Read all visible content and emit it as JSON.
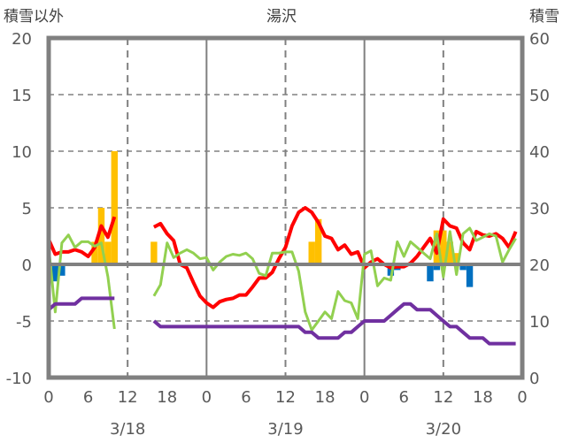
{
  "chart_data": {
    "type": "line",
    "title": "湯沢",
    "ylabel_left": "積雪以外",
    "ylabel_right": "積雪",
    "ylim_left": [
      -10,
      20
    ],
    "ylim_right": [
      0,
      60
    ],
    "yticks_left": [
      "20",
      "15",
      "10",
      "5",
      "0",
      "-5",
      "-10"
    ],
    "yticks_right": [
      "60",
      "50",
      "40",
      "30",
      "20",
      "10",
      "0"
    ],
    "xlim_hours": [
      0,
      72
    ],
    "xticks": [
      "0",
      "6",
      "12",
      "18",
      "0",
      "6",
      "12",
      "18",
      "0",
      "6",
      "12",
      "18",
      "0"
    ],
    "date_labels": [
      "3/18",
      "3/19",
      "3/20"
    ],
    "grid": "dashed at every 5 units and every 12 hours; solid at day boundaries and at 0",
    "colors": {
      "red": "#ff0000",
      "green": "#92d050",
      "purple": "#7030a0",
      "yellow": "#ffc000",
      "blue": "#0070c0",
      "axis": "#808080"
    },
    "series": [
      {
        "name": "red-line",
        "axis": "left",
        "color": "#ff0000",
        "values": [
          2.2,
          0.9,
          1.1,
          1.1,
          1.3,
          1.1,
          0.7,
          1.5,
          3.4,
          2.4,
          4.2,
          null,
          null,
          null,
          null,
          null,
          3.3,
          3.6,
          2.7,
          2.1,
          0,
          -0.3,
          -1.6,
          -2.8,
          -3.4,
          -3.8,
          -3.3,
          -3.1,
          -3.0,
          -2.7,
          -2.7,
          -2.0,
          -1.2,
          -1.2,
          -0.7,
          0.5,
          1.5,
          3.4,
          4.6,
          5.0,
          4.6,
          3.7,
          2.5,
          2.3,
          1.3,
          1.7,
          0.9,
          1.1,
          -0.3,
          0.2,
          0.5,
          0,
          -0.3,
          -0.2,
          -0.2,
          0.1,
          0.7,
          1.5,
          2.3,
          1.0,
          4.0,
          3.4,
          3.2,
          1.9,
          1.3,
          2.9,
          2.6,
          2.5,
          2.7,
          2.3,
          1.5,
          2.9
        ]
      },
      {
        "name": "green-line",
        "axis": "left",
        "color": "#92d050",
        "values": [
          1.5,
          -4.2,
          1.9,
          2.6,
          1.5,
          2.0,
          2.0,
          1.6,
          1.9,
          -1.1,
          -5.7,
          null,
          null,
          null,
          null,
          null,
          -2.8,
          -1.8,
          1.9,
          0.6,
          1.0,
          1.3,
          1.0,
          0.5,
          0.6,
          -0.5,
          0.2,
          0.7,
          0.9,
          0.8,
          1.0,
          0.5,
          -0.8,
          -1.0,
          1.0,
          1.0,
          1.1,
          1.1,
          -0.6,
          -4.2,
          -5.8,
          -5.0,
          -4.2,
          -4.8,
          -2.4,
          -3.2,
          -3.4,
          -4.8,
          0.9,
          1.2,
          -1.9,
          -1.2,
          -1.4,
          2.0,
          0.7,
          2.0,
          1.5,
          1.0,
          0.5,
          2.7,
          -1.1,
          2.9,
          -0.9,
          2.7,
          3.2,
          2.1,
          2.4,
          2.7,
          2.5,
          0.2,
          1.3,
          2.3
        ]
      },
      {
        "name": "purple-snow-depth",
        "axis": "right",
        "color": "#7030a0",
        "values": [
          12,
          13,
          13,
          13,
          13,
          14,
          14,
          14,
          14,
          14,
          14,
          null,
          null,
          null,
          null,
          null,
          10,
          9,
          9,
          9,
          9,
          9,
          9,
          9,
          9,
          9,
          9,
          9,
          9,
          9,
          9,
          9,
          9,
          9,
          9,
          9,
          9,
          9,
          9,
          8,
          8,
          7,
          7,
          7,
          7,
          8,
          8,
          9,
          10,
          10,
          10,
          10,
          11,
          12,
          13,
          13,
          12,
          12,
          12,
          11,
          10,
          9,
          9,
          8,
          7,
          7,
          7,
          6,
          6,
          6,
          6,
          6
        ]
      },
      {
        "name": "yellow-bars",
        "type": "bar",
        "axis": "left",
        "color": "#ffc000",
        "points": [
          [
            7,
            2
          ],
          [
            8,
            5
          ],
          [
            9,
            2
          ],
          [
            10,
            10
          ],
          [
            16,
            2
          ],
          [
            40,
            2
          ],
          [
            41,
            4
          ],
          [
            59,
            3
          ],
          [
            60,
            3
          ],
          [
            61,
            2
          ],
          [
            62,
            1
          ]
        ]
      },
      {
        "name": "blue-bars",
        "type": "bar",
        "axis": "left",
        "color": "#0070c0",
        "points": [
          [
            1,
            -1.5
          ],
          [
            2,
            -1
          ],
          [
            52,
            -1
          ],
          [
            53,
            -0.5
          ],
          [
            58,
            -1.5
          ],
          [
            59,
            -0.5
          ],
          [
            63,
            -0.5
          ],
          [
            64,
            -2
          ]
        ]
      }
    ]
  }
}
